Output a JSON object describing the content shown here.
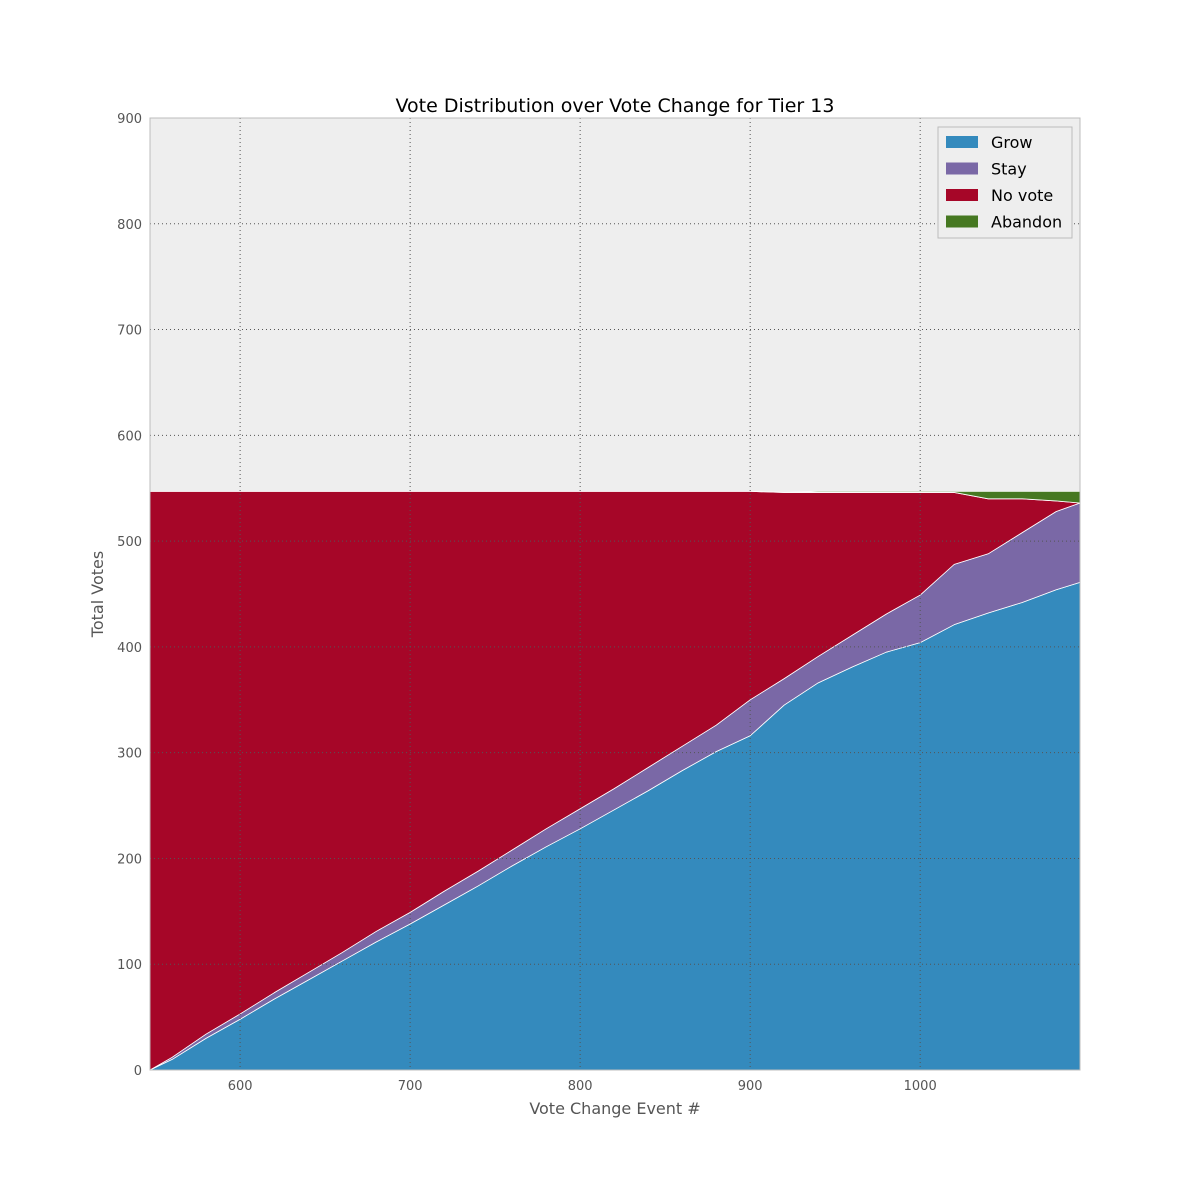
{
  "chart_data": {
    "type": "area",
    "stacked": true,
    "title": "Vote Distribution over Vote Change for Tier 13",
    "xlabel": "Vote Change Event #",
    "ylabel": "Total Votes",
    "xlim": [
      547,
      1094
    ],
    "ylim": [
      0,
      900
    ],
    "xticks": [
      600,
      700,
      800,
      900,
      1000
    ],
    "yticks": [
      0,
      100,
      200,
      300,
      400,
      500,
      600,
      700,
      800,
      900
    ],
    "grid": true,
    "legend_position": "top-right",
    "background_color": "#eeeeee",
    "x": [
      547,
      560,
      580,
      600,
      620,
      640,
      660,
      680,
      700,
      720,
      740,
      760,
      780,
      800,
      820,
      840,
      860,
      880,
      900,
      920,
      940,
      960,
      980,
      1000,
      1020,
      1040,
      1060,
      1080,
      1094
    ],
    "series": [
      {
        "name": "Grow",
        "color": "#348abd",
        "values": [
          0,
          10,
          30,
          48,
          67,
          85,
          103,
          121,
          138,
          156,
          174,
          193,
          211,
          228,
          246,
          264,
          283,
          301,
          316,
          345,
          366,
          381,
          395,
          404,
          421,
          432,
          442,
          454,
          461
        ]
      },
      {
        "name": "Stay",
        "color": "#7a68a6",
        "values": [
          0,
          2,
          4,
          5,
          6,
          7,
          8,
          10,
          11,
          13,
          14,
          15,
          17,
          19,
          20,
          22,
          23,
          25,
          34,
          25,
          25,
          30,
          36,
          45,
          57,
          56,
          66,
          74,
          75
        ]
      },
      {
        "name": "No vote",
        "color": "#a60628",
        "values": [
          547,
          535,
          513,
          494,
          474,
          455,
          436,
          416,
          398,
          378,
          359,
          339,
          319,
          300,
          281,
          261,
          241,
          221,
          197,
          176,
          155,
          135,
          115,
          97,
          68,
          52,
          32,
          10,
          0
        ]
      },
      {
        "name": "Abandon",
        "color": "#467821",
        "values": [
          0,
          0,
          0,
          0,
          0,
          0,
          0,
          0,
          0,
          0,
          0,
          0,
          0,
          0,
          0,
          0,
          0,
          0,
          0,
          0,
          1,
          1,
          1,
          1,
          1,
          7,
          7,
          9,
          11
        ]
      }
    ]
  }
}
